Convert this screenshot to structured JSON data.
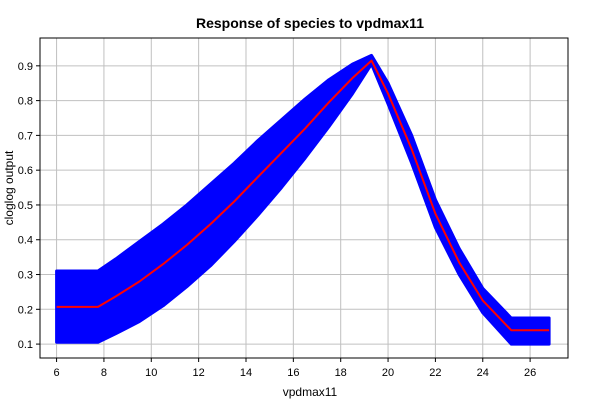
{
  "chart_data": {
    "type": "line",
    "title": "Response of species to vpdmax11",
    "xlabel": "vpdmax11",
    "ylabel": "cloglog output",
    "xlim": [
      5.3,
      27.6
    ],
    "ylim": [
      0.06,
      0.98
    ],
    "xticks": [
      6,
      8,
      10,
      12,
      14,
      16,
      18,
      20,
      22,
      24,
      26
    ],
    "yticks": [
      0.1,
      0.2,
      0.3,
      0.4,
      0.5,
      0.6,
      0.7,
      0.8,
      0.9
    ],
    "grid": true,
    "colors": {
      "band": "#0000ff",
      "mean": "#ff0000",
      "grid": "#c0c0c0"
    },
    "series": [
      {
        "role": "mean",
        "x": [
          6,
          7.75,
          8.5,
          9.5,
          10.5,
          11.5,
          12.5,
          13.5,
          14.5,
          15.5,
          16.5,
          17.5,
          18.5,
          19.3,
          20.0,
          21.0,
          22.0,
          23.0,
          24.0,
          25.2,
          26.8
        ],
        "y": [
          0.207,
          0.207,
          0.237,
          0.28,
          0.33,
          0.385,
          0.445,
          0.51,
          0.58,
          0.65,
          0.72,
          0.795,
          0.865,
          0.915,
          0.82,
          0.66,
          0.475,
          0.335,
          0.225,
          0.14,
          0.14
        ]
      },
      {
        "role": "upper",
        "x": [
          6,
          7.75,
          8.5,
          9.5,
          10.5,
          11.5,
          12.5,
          13.5,
          14.5,
          15.5,
          16.5,
          17.5,
          18.5,
          19.3,
          20.0,
          21.0,
          22.0,
          23.0,
          24.0,
          25.2,
          26.8
        ],
        "y": [
          0.31,
          0.31,
          0.345,
          0.395,
          0.445,
          0.5,
          0.56,
          0.62,
          0.685,
          0.745,
          0.805,
          0.86,
          0.905,
          0.93,
          0.85,
          0.7,
          0.515,
          0.375,
          0.26,
          0.175,
          0.175
        ]
      },
      {
        "role": "lower",
        "x": [
          6,
          7.75,
          8.5,
          9.5,
          10.5,
          11.5,
          12.5,
          13.5,
          14.5,
          15.5,
          16.5,
          17.5,
          18.5,
          19.3,
          20.0,
          21.0,
          22.0,
          23.0,
          24.0,
          25.2,
          26.8
        ],
        "y": [
          0.105,
          0.105,
          0.13,
          0.165,
          0.21,
          0.265,
          0.325,
          0.395,
          0.47,
          0.55,
          0.635,
          0.725,
          0.82,
          0.905,
          0.79,
          0.62,
          0.435,
          0.3,
          0.19,
          0.1,
          0.1
        ]
      }
    ]
  }
}
